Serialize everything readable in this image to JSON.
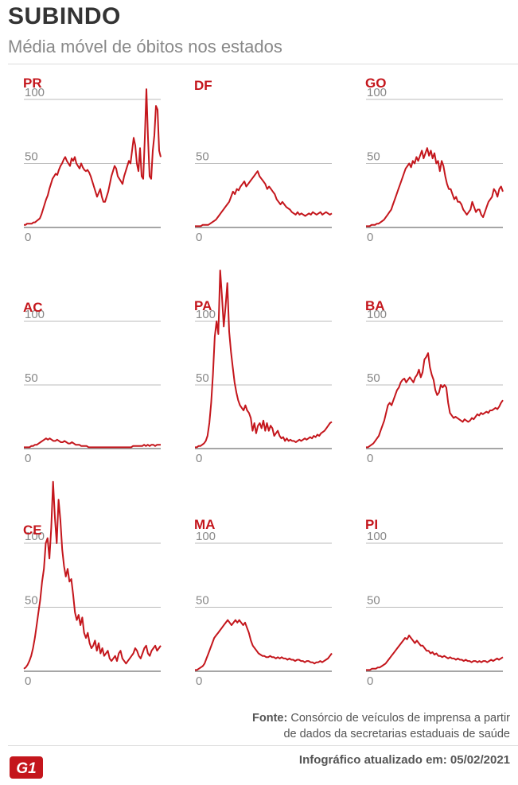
{
  "header": {
    "title": "SUBINDO",
    "subtitle": "Média móvel de óbitos nos estados"
  },
  "footer": {
    "source_label": "Fonte:",
    "source_line1": "Consórcio de veículos de imprensa a partir",
    "source_line2": "de dados da secretarias estaduais de saúde",
    "updated": "Infográfico atualizado em: 05/02/2021",
    "logo_text": "G1"
  },
  "colors": {
    "line": "#c4161c",
    "label": "#c4161c",
    "grid": "#bbbbbb",
    "axis": "#888888",
    "tick": "#888888"
  },
  "chart_data": [
    {
      "type": "line",
      "title": "PR",
      "yticks": [
        0,
        50,
        100
      ],
      "ylim": [
        0,
        100
      ],
      "series": [
        {
          "values": [
            2,
            2,
            3,
            3,
            3,
            3,
            4,
            4,
            5,
            6,
            7,
            10,
            14,
            18,
            22,
            25,
            30,
            34,
            38,
            40,
            42,
            41,
            45,
            48,
            50,
            53,
            55,
            52,
            50,
            48,
            54,
            52,
            55,
            50,
            48,
            46,
            50,
            47,
            45,
            44,
            45,
            43,
            40,
            36,
            32,
            28,
            24,
            27,
            30,
            24,
            20,
            20,
            24,
            28,
            34,
            40,
            44,
            48,
            46,
            40,
            38,
            36,
            34,
            40,
            44,
            48,
            52,
            50,
            60,
            70,
            64,
            50,
            44,
            62,
            40,
            38,
            70,
            108,
            70,
            40,
            38,
            60,
            72,
            95,
            92,
            60,
            55
          ]
        }
      ]
    },
    {
      "type": "line",
      "title": "DF",
      "yticks": [
        0,
        50
      ],
      "ylim": [
        0,
        100
      ],
      "series": [
        {
          "values": [
            1,
            1,
            1,
            1,
            2,
            2,
            2,
            2,
            3,
            4,
            5,
            6,
            8,
            10,
            12,
            14,
            16,
            18,
            20,
            24,
            28,
            26,
            30,
            29,
            32,
            34,
            36,
            32,
            34,
            36,
            38,
            40,
            42,
            44,
            40,
            38,
            36,
            34,
            30,
            32,
            30,
            28,
            26,
            22,
            20,
            18,
            20,
            18,
            16,
            15,
            14,
            12,
            11,
            10,
            12,
            10,
            11,
            10,
            9,
            10,
            11,
            10,
            12,
            11,
            10,
            11,
            12,
            10,
            11,
            12,
            11,
            10,
            11
          ]
        }
      ]
    },
    {
      "type": "line",
      "title": "GO",
      "yticks": [
        0,
        50,
        100
      ],
      "ylim": [
        0,
        100
      ],
      "series": [
        {
          "values": [
            1,
            1,
            1,
            2,
            2,
            2,
            3,
            3,
            4,
            5,
            6,
            8,
            10,
            12,
            14,
            18,
            22,
            26,
            30,
            34,
            38,
            42,
            46,
            48,
            50,
            47,
            52,
            50,
            55,
            52,
            56,
            60,
            54,
            58,
            62,
            56,
            60,
            54,
            58,
            50,
            52,
            44,
            52,
            48,
            40,
            34,
            30,
            30,
            26,
            22,
            24,
            20,
            20,
            18,
            14,
            12,
            10,
            12,
            14,
            20,
            16,
            12,
            14,
            14,
            10,
            8,
            12,
            16,
            20,
            22,
            24,
            30,
            28,
            24,
            30,
            32,
            28
          ]
        }
      ]
    },
    {
      "type": "line",
      "title": "AC",
      "yticks": [
        0,
        50,
        100
      ],
      "ylim": [
        0,
        100
      ],
      "series": [
        {
          "values": [
            1,
            1,
            1,
            1,
            2,
            2,
            3,
            3,
            4,
            5,
            6,
            7,
            8,
            7,
            8,
            7,
            6,
            6,
            7,
            6,
            5,
            5,
            6,
            5,
            4,
            4,
            5,
            4,
            3,
            3,
            3,
            2,
            2,
            2,
            2,
            1,
            1,
            1,
            1,
            1,
            1,
            1,
            1,
            1,
            1,
            1,
            1,
            1,
            1,
            1,
            1,
            1,
            1,
            1,
            1,
            1,
            1,
            1,
            1,
            2,
            2,
            2,
            2,
            2,
            2,
            3,
            2,
            3,
            2,
            3,
            3,
            2,
            3,
            3,
            3
          ]
        }
      ]
    },
    {
      "type": "line",
      "title": "PA",
      "yticks": [
        0,
        50,
        100
      ],
      "ylim": [
        0,
        100
      ],
      "series": [
        {
          "values": [
            1,
            1,
            2,
            2,
            3,
            4,
            6,
            10,
            20,
            36,
            58,
            88,
            100,
            90,
            140,
            120,
            96,
            112,
            130,
            92,
            76,
            64,
            52,
            44,
            38,
            34,
            32,
            30,
            34,
            30,
            28,
            24,
            14,
            20,
            12,
            18,
            20,
            16,
            22,
            14,
            20,
            14,
            18,
            16,
            10,
            12,
            14,
            10,
            8,
            9,
            6,
            8,
            6,
            7,
            6,
            6,
            5,
            6,
            7,
            6,
            7,
            8,
            7,
            8,
            9,
            8,
            10,
            9,
            11,
            10,
            12,
            13,
            14,
            16,
            18,
            20,
            21
          ]
        }
      ]
    },
    {
      "type": "line",
      "title": "BA",
      "yticks": [
        0,
        50,
        100
      ],
      "ylim": [
        0,
        100
      ],
      "series": [
        {
          "values": [
            1,
            1,
            2,
            3,
            4,
            6,
            8,
            10,
            14,
            18,
            22,
            28,
            34,
            36,
            34,
            38,
            42,
            46,
            48,
            52,
            54,
            55,
            52,
            54,
            56,
            54,
            52,
            56,
            58,
            62,
            56,
            60,
            70,
            72,
            75,
            64,
            58,
            54,
            46,
            42,
            44,
            50,
            48,
            50,
            48,
            36,
            28,
            26,
            24,
            25,
            24,
            23,
            22,
            21,
            23,
            22,
            21,
            22,
            24,
            23,
            25,
            27,
            26,
            28,
            27,
            28,
            29,
            28,
            30,
            30,
            31,
            32,
            31,
            33,
            36,
            38
          ]
        }
      ]
    },
    {
      "type": "line",
      "title": "CE",
      "yticks": [
        0,
        50,
        100
      ],
      "ylim": [
        0,
        100
      ],
      "series": [
        {
          "values": [
            2,
            3,
            5,
            8,
            12,
            18,
            26,
            36,
            46,
            56,
            70,
            80,
            100,
            104,
            88,
            112,
            148,
            120,
            100,
            134,
            118,
            95,
            82,
            74,
            80,
            70,
            72,
            60,
            46,
            40,
            44,
            36,
            42,
            30,
            26,
            30,
            22,
            18,
            20,
            24,
            16,
            22,
            14,
            18,
            12,
            14,
            16,
            10,
            8,
            10,
            12,
            8,
            14,
            16,
            10,
            8,
            6,
            8,
            10,
            12,
            14,
            18,
            16,
            12,
            10,
            14,
            18,
            20,
            14,
            12,
            16,
            18,
            20,
            16,
            18,
            20
          ]
        }
      ]
    },
    {
      "type": "line",
      "title": "MA",
      "yticks": [
        0,
        50,
        100
      ],
      "ylim": [
        0,
        100
      ],
      "series": [
        {
          "values": [
            1,
            1,
            2,
            3,
            4,
            6,
            10,
            14,
            18,
            22,
            26,
            28,
            30,
            32,
            34,
            36,
            38,
            40,
            38,
            36,
            38,
            40,
            38,
            40,
            38,
            36,
            38,
            34,
            30,
            24,
            20,
            18,
            16,
            14,
            13,
            12,
            12,
            11,
            11,
            12,
            11,
            11,
            10,
            11,
            10,
            11,
            10,
            10,
            9,
            10,
            9,
            9,
            8,
            9,
            9,
            8,
            8,
            7,
            8,
            8,
            7,
            7,
            6,
            7,
            7,
            8,
            7,
            8,
            9,
            10,
            12,
            14
          ]
        }
      ]
    },
    {
      "type": "line",
      "title": "PI",
      "yticks": [
        0,
        50,
        100
      ],
      "ylim": [
        0,
        100
      ],
      "series": [
        {
          "values": [
            1,
            1,
            1,
            2,
            2,
            2,
            3,
            3,
            4,
            5,
            6,
            8,
            10,
            12,
            14,
            16,
            18,
            20,
            22,
            24,
            26,
            25,
            28,
            26,
            24,
            22,
            24,
            22,
            20,
            20,
            18,
            16,
            16,
            14,
            15,
            13,
            14,
            12,
            12,
            11,
            12,
            11,
            10,
            11,
            10,
            10,
            9,
            10,
            9,
            9,
            8,
            9,
            8,
            8,
            7,
            8,
            8,
            7,
            8,
            7,
            8,
            8,
            7,
            8,
            9,
            8,
            9,
            10,
            9,
            10,
            11
          ]
        }
      ]
    }
  ]
}
